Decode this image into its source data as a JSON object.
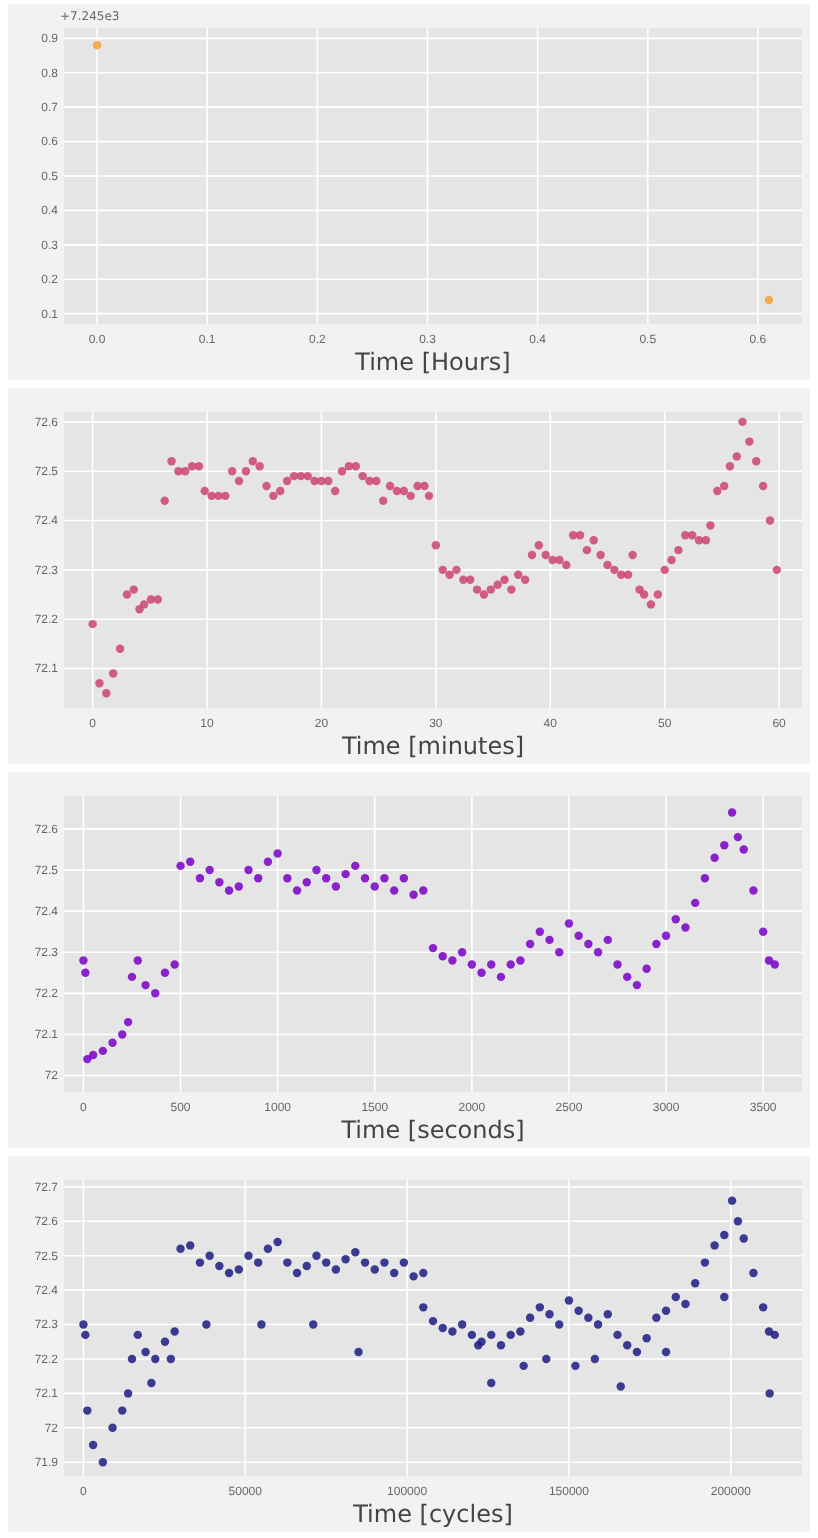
{
  "chart_data": [
    {
      "type": "scatter",
      "xlabel": "Time [Hours]",
      "annotations": [
        "+7.245e3"
      ],
      "marker": "circle",
      "grid": true,
      "color": "#f5a030",
      "x": [
        0.0,
        0.61
      ],
      "values": [
        0.88,
        0.14
      ],
      "xlim": [
        -0.03,
        0.64
      ],
      "xticks": [
        {
          "value": 0,
          "label": "0.0"
        },
        0.1,
        0.2,
        0.3,
        0.4,
        0.5,
        0.6
      ],
      "ylim": [
        0.07,
        0.93
      ],
      "yticks": [
        0.1,
        0.2,
        0.3,
        0.4,
        0.5,
        0.6,
        0.7,
        0.8,
        0.9
      ]
    },
    {
      "type": "scatter",
      "xlabel": "Time [minutes]",
      "marker": "circle",
      "grid": true,
      "color": "#cc4470",
      "x": [
        0,
        0.6,
        1.2,
        1.8,
        2.4,
        3.0,
        3.6,
        4.1,
        4.5,
        5.1,
        5.7,
        6.3,
        6.9,
        7.5,
        8.1,
        8.7,
        9.3,
        9.8,
        10.4,
        11,
        11.6,
        12.2,
        12.8,
        13.4,
        14,
        14.6,
        15.2,
        15.8,
        16.4,
        17,
        17.6,
        18.2,
        18.8,
        19.4,
        20,
        20.6,
        21.2,
        21.8,
        22.4,
        23,
        23.6,
        24.2,
        24.8,
        25.4,
        26,
        26.6,
        27.2,
        27.8,
        28.4,
        29,
        29.4,
        30,
        30.6,
        31.2,
        31.8,
        32.4,
        33,
        33.6,
        34.2,
        34.8,
        35.4,
        36,
        36.6,
        37.2,
        37.8,
        38.4,
        39,
        39.6,
        40.2,
        40.8,
        41.4,
        42,
        42.6,
        43.2,
        43.8,
        44.4,
        45,
        45.6,
        46.2,
        46.8,
        47.2,
        47.8,
        48.2,
        48.8,
        49.4,
        50,
        50.6,
        51.2,
        51.8,
        52.4,
        53,
        53.6,
        54,
        54.6,
        55.2,
        55.7,
        56.3,
        56.8,
        57.4,
        58,
        58.6,
        59.2,
        59.8
      ],
      "values": [
        72.19,
        72.07,
        72.05,
        72.09,
        72.14,
        72.25,
        72.26,
        72.22,
        72.23,
        72.24,
        72.24,
        72.44,
        72.52,
        72.5,
        72.5,
        72.51,
        72.51,
        72.46,
        72.45,
        72.45,
        72.45,
        72.5,
        72.48,
        72.5,
        72.52,
        72.51,
        72.47,
        72.45,
        72.46,
        72.48,
        72.49,
        72.49,
        72.49,
        72.48,
        72.48,
        72.48,
        72.46,
        72.5,
        72.51,
        72.51,
        72.49,
        72.48,
        72.48,
        72.44,
        72.47,
        72.46,
        72.46,
        72.45,
        72.47,
        72.47,
        72.45,
        72.35,
        72.3,
        72.29,
        72.3,
        72.28,
        72.28,
        72.26,
        72.25,
        72.26,
        72.27,
        72.28,
        72.26,
        72.29,
        72.28,
        72.33,
        72.35,
        72.33,
        72.32,
        72.32,
        72.31,
        72.37,
        72.37,
        72.34,
        72.36,
        72.33,
        72.31,
        72.3,
        72.29,
        72.29,
        72.33,
        72.26,
        72.25,
        72.23,
        72.25,
        72.3,
        72.32,
        72.34,
        72.37,
        72.37,
        72.36,
        72.36,
        72.39,
        72.46,
        72.47,
        72.51,
        72.53,
        72.6,
        72.56,
        72.52,
        72.47,
        72.4,
        72.3
      ],
      "xlim": [
        -2.5,
        62
      ],
      "xticks": [
        0,
        10,
        20,
        30,
        40,
        50,
        60
      ],
      "ylim": [
        72.02,
        72.62
      ],
      "yticks": [
        72.1,
        72.2,
        72.3,
        72.4,
        72.5,
        72.6
      ]
    },
    {
      "type": "scatter",
      "xlabel": "Time [seconds]",
      "marker": "circle",
      "grid": true,
      "color": "#7a00c8",
      "x": [
        0,
        10,
        20,
        50,
        100,
        150,
        200,
        230,
        250,
        280,
        320,
        370,
        420,
        470,
        500,
        550,
        600,
        650,
        700,
        750,
        800,
        850,
        900,
        950,
        1000,
        1050,
        1100,
        1150,
        1200,
        1250,
        1300,
        1350,
        1400,
        1450,
        1500,
        1550,
        1600,
        1650,
        1700,
        1750,
        1800,
        1850,
        1900,
        1950,
        2000,
        2050,
        2100,
        2150,
        2200,
        2250,
        2300,
        2350,
        2400,
        2450,
        2500,
        2550,
        2600,
        2650,
        2700,
        2750,
        2800,
        2850,
        2900,
        2950,
        3000,
        3050,
        3100,
        3150,
        3200,
        3250,
        3300,
        3340,
        3370,
        3400,
        3450,
        3500,
        3530,
        3560
      ],
      "values": [
        72.28,
        72.25,
        72.04,
        72.05,
        72.06,
        72.08,
        72.1,
        72.13,
        72.24,
        72.28,
        72.22,
        72.2,
        72.25,
        72.27,
        72.51,
        72.52,
        72.48,
        72.5,
        72.47,
        72.45,
        72.46,
        72.5,
        72.48,
        72.52,
        72.54,
        72.48,
        72.45,
        72.47,
        72.5,
        72.48,
        72.46,
        72.49,
        72.51,
        72.48,
        72.46,
        72.48,
        72.45,
        72.48,
        72.44,
        72.45,
        72.31,
        72.29,
        72.28,
        72.3,
        72.27,
        72.25,
        72.27,
        72.24,
        72.27,
        72.28,
        72.32,
        72.35,
        72.33,
        72.3,
        72.37,
        72.34,
        72.32,
        72.3,
        72.33,
        72.27,
        72.24,
        72.22,
        72.26,
        72.32,
        72.34,
        72.38,
        72.36,
        72.42,
        72.48,
        72.53,
        72.56,
        72.64,
        72.58,
        72.55,
        72.45,
        72.35,
        72.28,
        72.27
      ],
      "xlim": [
        -100,
        3700
      ],
      "xticks": [
        0,
        500,
        1000,
        1500,
        2000,
        2500,
        3000,
        3500
      ],
      "ylim": [
        71.96,
        72.68
      ],
      "yticks": [
        72.0,
        72.1,
        72.2,
        72.3,
        72.4,
        72.5,
        72.6
      ]
    },
    {
      "type": "scatter",
      "xlabel": "Time [cycles]",
      "marker": "circle",
      "grid": true,
      "color": "#1c1c84",
      "x": [
        0,
        600,
        1200,
        3000,
        6000,
        9000,
        12000,
        13800,
        15000,
        16800,
        19200,
        22200,
        25200,
        28200,
        30000,
        33000,
        36000,
        39000,
        42000,
        45000,
        48000,
        51000,
        54000,
        57000,
        60000,
        63000,
        66000,
        69000,
        72000,
        75000,
        78000,
        81000,
        84000,
        87000,
        90000,
        93000,
        96000,
        99000,
        102000,
        105000,
        108000,
        111000,
        114000,
        117000,
        120000,
        123000,
        126000,
        129000,
        132000,
        135000,
        138000,
        141000,
        144000,
        147000,
        150000,
        153000,
        156000,
        159000,
        162000,
        165000,
        168000,
        171000,
        174000,
        177000,
        180000,
        183000,
        186000,
        189000,
        192000,
        195000,
        198000,
        200400,
        202200,
        204000,
        207000,
        210000,
        211800,
        213600,
        21000,
        27000,
        38000,
        55000,
        71000,
        85000,
        105000,
        122000,
        126000,
        136000,
        143000,
        152000,
        158000,
        166000,
        180000,
        198000,
        212000
      ],
      "values": [
        72.3,
        72.27,
        72.05,
        71.95,
        71.9,
        72.0,
        72.05,
        72.1,
        72.2,
        72.27,
        72.22,
        72.2,
        72.25,
        72.28,
        72.52,
        72.53,
        72.48,
        72.5,
        72.47,
        72.45,
        72.46,
        72.5,
        72.48,
        72.52,
        72.54,
        72.48,
        72.45,
        72.47,
        72.5,
        72.48,
        72.46,
        72.49,
        72.51,
        72.48,
        72.46,
        72.48,
        72.45,
        72.48,
        72.44,
        72.45,
        72.31,
        72.29,
        72.28,
        72.3,
        72.27,
        72.25,
        72.27,
        72.24,
        72.27,
        72.28,
        72.32,
        72.35,
        72.33,
        72.3,
        72.37,
        72.34,
        72.32,
        72.3,
        72.33,
        72.27,
        72.24,
        72.22,
        72.26,
        72.32,
        72.34,
        72.38,
        72.36,
        72.42,
        72.48,
        72.53,
        72.56,
        72.66,
        72.6,
        72.55,
        72.45,
        72.35,
        72.28,
        72.27,
        72.13,
        72.2,
        72.3,
        72.3,
        72.3,
        72.22,
        72.35,
        72.24,
        72.13,
        72.18,
        72.2,
        72.18,
        72.2,
        72.12,
        72.22,
        72.38,
        72.1
      ],
      "xlim": [
        -6000,
        222000
      ],
      "xticks": [
        0,
        50000,
        100000,
        150000,
        200000
      ],
      "ylim": [
        71.86,
        72.72
      ],
      "yticks": [
        71.9,
        72.0,
        72.1,
        72.2,
        72.3,
        72.4,
        72.5,
        72.6,
        72.7
      ]
    }
  ]
}
